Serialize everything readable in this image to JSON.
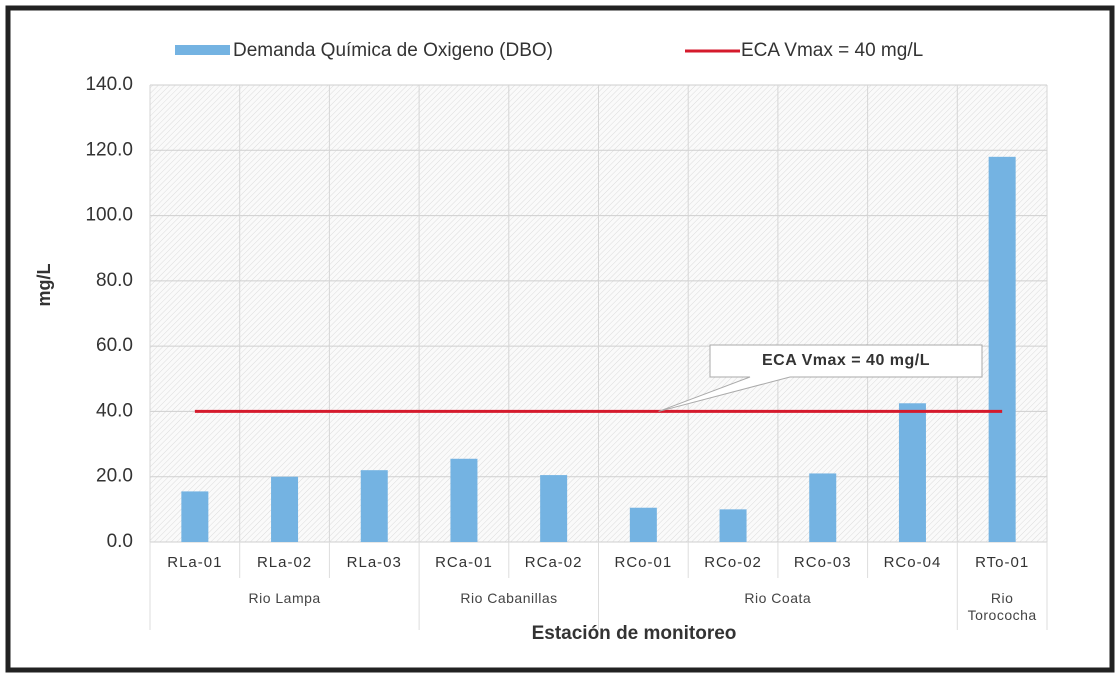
{
  "chart_data": {
    "type": "bar",
    "categories": [
      "RLa-01",
      "RLa-02",
      "RLa-03",
      "RCa-01",
      "RCa-02",
      "RCo-01",
      "RCo-02",
      "RCo-03",
      "RCo-04",
      "RTo-01"
    ],
    "series": [
      {
        "name": "Demanda Química de Oxigeno (DBO)",
        "color": "#74b3e2",
        "values": [
          15.5,
          20,
          22,
          25.5,
          20.5,
          10.5,
          10,
          21,
          42.5,
          118
        ]
      }
    ],
    "reference_line": {
      "value": 40,
      "name": "ECA Vmax = 40 mg/L",
      "color": "#d51a2c",
      "annotation": "ECA Vmax = 40 mg/L"
    },
    "groups": [
      {
        "name": "Rio Lampa",
        "size": 3
      },
      {
        "name": "Rio Cabanillas",
        "size": 2
      },
      {
        "name": "Rio Coata",
        "size": 4
      },
      {
        "name": "Rio Torococha",
        "size": 1
      }
    ],
    "xlabel": "Estación de monitoreo",
    "ylabel": "mg/L",
    "ylim": [
      0,
      140
    ],
    "yticks": [
      {
        "value": 0,
        "label": "0.0"
      },
      {
        "value": 20,
        "label": "20.0"
      },
      {
        "value": 40,
        "label": "40.0"
      },
      {
        "value": 60,
        "label": "60.0"
      },
      {
        "value": 80,
        "label": "80.0"
      },
      {
        "value": 100,
        "label": "100.0"
      },
      {
        "value": 120,
        "label": "120.0"
      },
      {
        "value": 140,
        "label": "140.0"
      }
    ],
    "grid": true,
    "legend": "top"
  }
}
